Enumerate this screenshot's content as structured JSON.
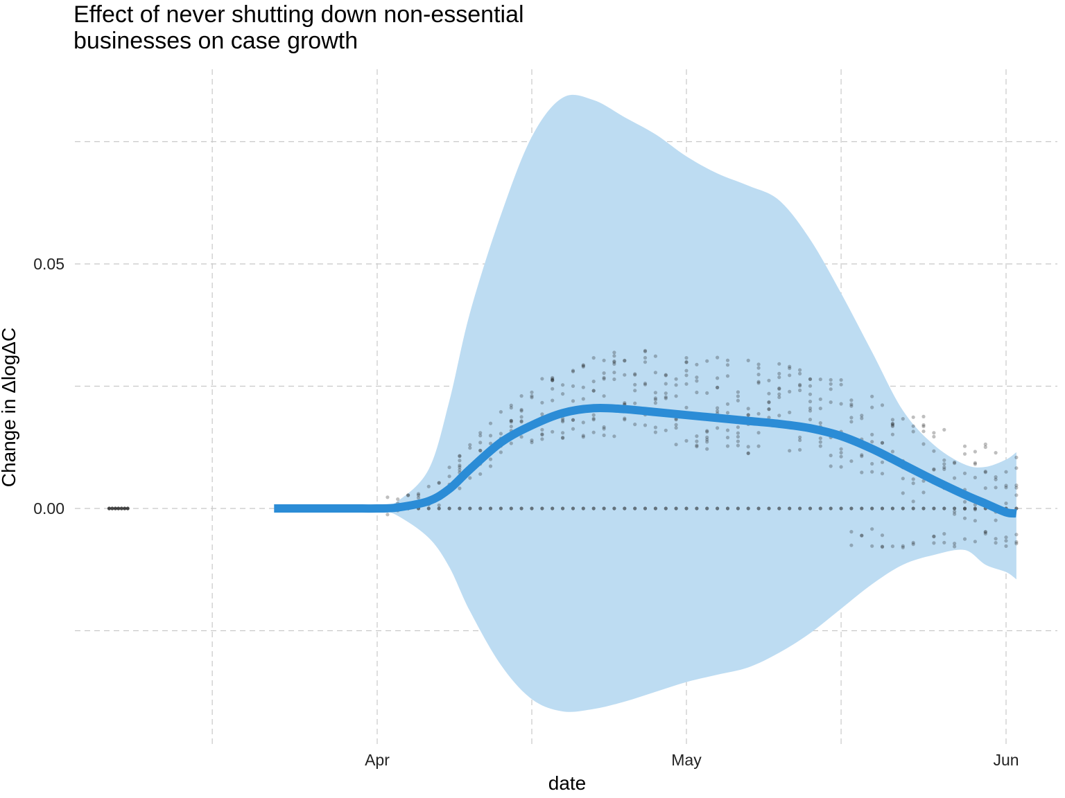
{
  "chart_data": {
    "type": "line",
    "title": "Effect of never shutting down non-essential\nbusinesses on case growth",
    "xlabel": "date",
    "ylabel": "Change in ΔlogΔC",
    "x_ticks": [
      {
        "date": "2020-04-01",
        "label": "Apr"
      },
      {
        "date": "2020-05-01",
        "label": "May"
      },
      {
        "date": "2020-06-01",
        "label": "Jun"
      }
    ],
    "y_ticks": [
      {
        "value": 0.0,
        "label": "0.00"
      },
      {
        "value": 0.05,
        "label": "0.05"
      }
    ],
    "xlim": [
      "2020-03-06",
      "2020-06-03"
    ],
    "ylim": [
      -0.047,
      0.09
    ],
    "grid": true,
    "colors": {
      "line": "#2b8cd6",
      "band": "#bddcf2",
      "points": "#1a1a1a",
      "grid": "#c8c8c8"
    },
    "series": [
      {
        "kind": "smooth-line",
        "x": [
          "2020-03-22",
          "2020-03-29",
          "2020-04-01",
          "2020-04-03",
          "2020-04-06",
          "2020-04-08",
          "2020-04-10",
          "2020-04-13",
          "2020-04-16",
          "2020-04-19",
          "2020-04-22",
          "2020-04-25",
          "2020-04-28",
          "2020-05-01",
          "2020-05-04",
          "2020-05-07",
          "2020-05-10",
          "2020-05-13",
          "2020-05-16",
          "2020-05-19",
          "2020-05-22",
          "2020-05-25",
          "2020-05-28",
          "2020-05-30",
          "2020-06-01",
          "2020-06-02"
        ],
        "y": [
          0.0,
          0.0,
          0.0,
          0.0002,
          0.0015,
          0.004,
          0.008,
          0.0135,
          0.017,
          0.0195,
          0.0205,
          0.0203,
          0.0197,
          0.0191,
          0.0185,
          0.0179,
          0.0173,
          0.0164,
          0.0148,
          0.0122,
          0.009,
          0.0058,
          0.0028,
          0.001,
          -0.0008,
          -0.001
        ]
      },
      {
        "kind": "confidence-band",
        "x": [
          "2020-04-01",
          "2020-04-03",
          "2020-04-06",
          "2020-04-08",
          "2020-04-10",
          "2020-04-13",
          "2020-04-16",
          "2020-04-19",
          "2020-04-22",
          "2020-04-25",
          "2020-04-28",
          "2020-05-01",
          "2020-05-04",
          "2020-05-07",
          "2020-05-10",
          "2020-05-13",
          "2020-05-16",
          "2020-05-19",
          "2020-05-22",
          "2020-05-25",
          "2020-05-28",
          "2020-05-30",
          "2020-06-01",
          "2020-06-02"
        ],
        "upper": [
          0.0,
          0.0015,
          0.008,
          0.022,
          0.04,
          0.06,
          0.076,
          0.084,
          0.0835,
          0.08,
          0.0765,
          0.072,
          0.0685,
          0.066,
          0.063,
          0.055,
          0.044,
          0.032,
          0.02,
          0.013,
          0.009,
          0.0085,
          0.01,
          0.0115
        ],
        "lower": [
          0.0,
          -0.0015,
          -0.006,
          -0.012,
          -0.021,
          -0.032,
          -0.039,
          -0.0415,
          -0.041,
          -0.0395,
          -0.0375,
          -0.0355,
          -0.034,
          -0.0325,
          -0.0295,
          -0.0255,
          -0.0205,
          -0.0155,
          -0.0115,
          -0.0095,
          -0.0085,
          -0.0115,
          -0.013,
          -0.0145
        ]
      }
    ]
  }
}
